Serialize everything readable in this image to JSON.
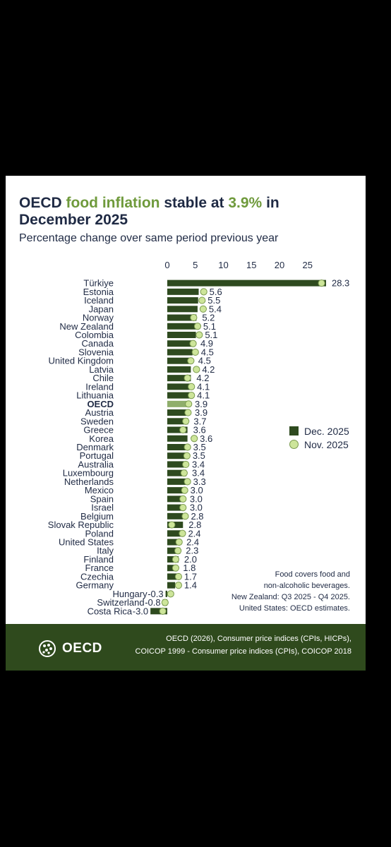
{
  "title": {
    "part1": "OECD ",
    "highlight1": "food inflation",
    "part2": " stable at ",
    "highlight2": "3.9%",
    "part3": " in December 2025"
  },
  "subtitle": "Percentage change over same period previous year",
  "legend": {
    "series1": "Dec. 2025",
    "series2": "Nov. 2025"
  },
  "note": [
    "Food covers food and",
    "non-alcoholic beverages.",
    "New Zealand: Q3 2025 - Q4 2025.",
    "United States: OECD estimates."
  ],
  "footer": {
    "logo": "OECD",
    "source_line1": "OECD (2026), Consumer price indices (CPIs, HICPs),",
    "source_line2": "COICOP 1999 - Consumer price indices (CPIs), COICOP 2018"
  },
  "colors": {
    "bar": "#2e4a1f",
    "oecd_bar": "#8fae6b",
    "dot": "#cde59a",
    "footer": "#2f4a1d"
  },
  "chart_data": {
    "type": "bar",
    "orientation": "horizontal",
    "xticks": [
      0,
      5,
      10,
      15,
      20,
      25
    ],
    "xlim": [
      -3.5,
      29
    ],
    "categories": [
      "Türkiye",
      "Estonia",
      "Iceland",
      "Japan",
      "Norway",
      "New Zealand",
      "Colombia",
      "Canada",
      "Slovenia",
      "United Kingdom",
      "Latvia",
      "Chile",
      "Ireland",
      "Lithuania",
      "OECD",
      "Austria",
      "Sweden",
      "Greece",
      "Korea",
      "Denmark",
      "Portugal",
      "Australia",
      "Luxembourg",
      "Netherlands",
      "Mexico",
      "Spain",
      "Israel",
      "Belgium",
      "Slovak Republic",
      "Poland",
      "United States",
      "Italy",
      "Finland",
      "France",
      "Czechia",
      "Germany",
      "Hungary",
      "Switzerland",
      "Costa Rica"
    ],
    "value_labels": [
      "28.3",
      "5.6",
      "5.5",
      "5.4",
      "5.2",
      "5.1",
      "5.1",
      "4.9",
      "4.5",
      "4.5",
      "4.2",
      "4.2",
      "4.1",
      "4.1",
      "3.9",
      "3.9",
      "3.7",
      "3.6",
      "3.6",
      "3.5",
      "3.5",
      "3.4",
      "3.4",
      "3.3",
      "3.0",
      "3.0",
      "3.0",
      "2.8",
      "2.8",
      "2.4",
      "2.4",
      "2.3",
      "2.0",
      "1.8",
      "1.7",
      "1.4",
      "-0.3",
      "-0.8",
      "-3.0"
    ],
    "series": [
      {
        "name": "Dec. 2025",
        "values": [
          28.3,
          5.6,
          5.5,
          5.4,
          5.2,
          5.1,
          5.1,
          4.9,
          4.5,
          4.5,
          4.2,
          4.2,
          4.1,
          4.1,
          3.9,
          3.9,
          3.7,
          3.6,
          3.6,
          3.5,
          3.5,
          3.4,
          3.4,
          3.3,
          3.0,
          3.0,
          3.0,
          2.8,
          2.8,
          2.4,
          2.4,
          2.3,
          2.0,
          1.8,
          1.7,
          1.4,
          -0.3,
          -0.8,
          -3.0
        ]
      },
      {
        "name": "Nov. 2025",
        "values": [
          27.5,
          6.5,
          6.2,
          6.4,
          4.7,
          5.4,
          5.7,
          4.6,
          5.0,
          4.2,
          5.2,
          3.6,
          4.3,
          4.3,
          3.8,
          3.7,
          3.3,
          2.8,
          4.8,
          3.6,
          3.5,
          3.3,
          3.0,
          3.6,
          3.1,
          2.8,
          2.8,
          3.2,
          0.8,
          2.7,
          2.1,
          1.9,
          1.5,
          1.5,
          2.0,
          2.0,
          0.6,
          -0.4,
          -0.8
        ]
      }
    ],
    "highlight_category": "OECD",
    "legend_position": "right"
  }
}
